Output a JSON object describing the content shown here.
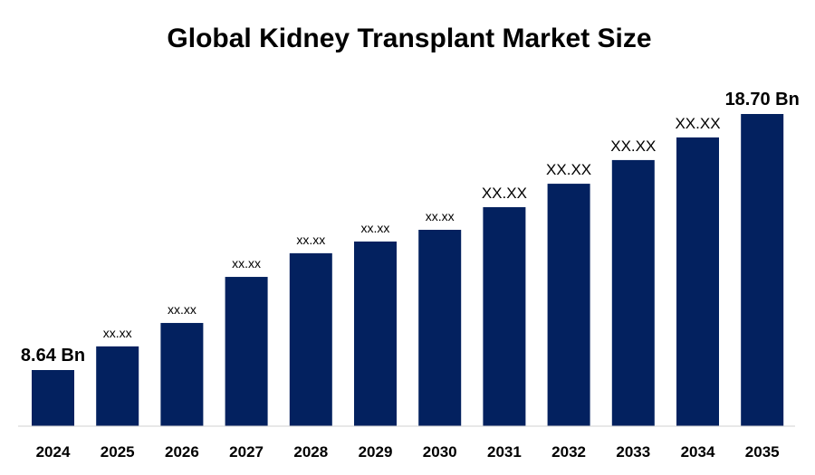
{
  "chart_data": {
    "type": "bar",
    "title": "Global Kidney Transplant Market Size",
    "xlabel": "",
    "ylabel": "",
    "grid": false,
    "bar_color": "#03215F",
    "categories": [
      "2024",
      "2025",
      "2026",
      "2027",
      "2028",
      "2029",
      "2030",
      "2031",
      "2032",
      "2033",
      "2034",
      "2035"
    ],
    "values": [
      8.64,
      9.57,
      10.49,
      12.3,
      13.23,
      13.69,
      14.15,
      15.04,
      15.96,
      16.89,
      17.78,
      18.7
    ],
    "data_labels": [
      "8.64 Bn",
      "xx.xx",
      "xx.xx",
      "xx.xx",
      "xx.xx",
      "xx.xx",
      "xx.xx",
      "XX.XX",
      "XX.XX",
      "XX.XX",
      "XX.XX",
      "18.70 Bn"
    ]
  }
}
